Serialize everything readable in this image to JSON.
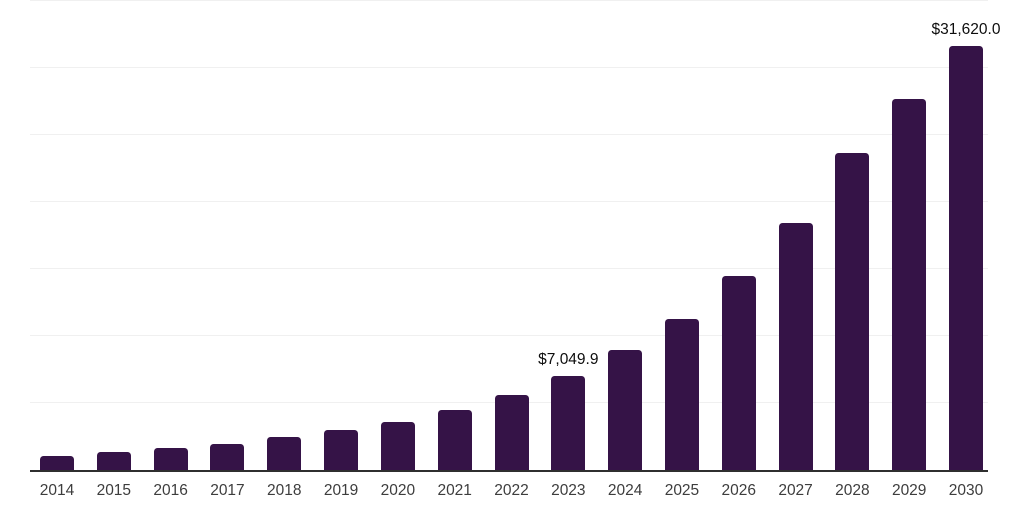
{
  "chart_data": {
    "type": "bar",
    "title": "",
    "categories": [
      "2014",
      "2015",
      "2016",
      "2017",
      "2018",
      "2019",
      "2020",
      "2021",
      "2022",
      "2023",
      "2024",
      "2025",
      "2026",
      "2027",
      "2028",
      "2029",
      "2030"
    ],
    "values": [
      1040,
      1360,
      1660,
      1910,
      2440,
      2980,
      3570,
      4450,
      5610,
      7049.9,
      8990,
      11300,
      14500,
      18440,
      23680,
      27700,
      31620
    ],
    "bar_labels": [
      "",
      "",
      "",
      "",
      "",
      "",
      "",
      "",
      "",
      "$7,049.9",
      "",
      "",
      "",
      "",
      "",
      "",
      "$31,620.0"
    ],
    "xlabel": "",
    "ylabel": "",
    "ylim": [
      0,
      35000
    ],
    "grid_step": 5000,
    "gridlines": "horizontal",
    "y_tick_labels_visible": false,
    "legend": "none",
    "colors": {
      "bar": "#351347",
      "gridline": "#f0f0f0",
      "axis_line": "#2f2f2f",
      "bar_label_text": "#0d0d0d",
      "x_tick_text": "#3d3d3d",
      "background": "#ffffff"
    }
  }
}
